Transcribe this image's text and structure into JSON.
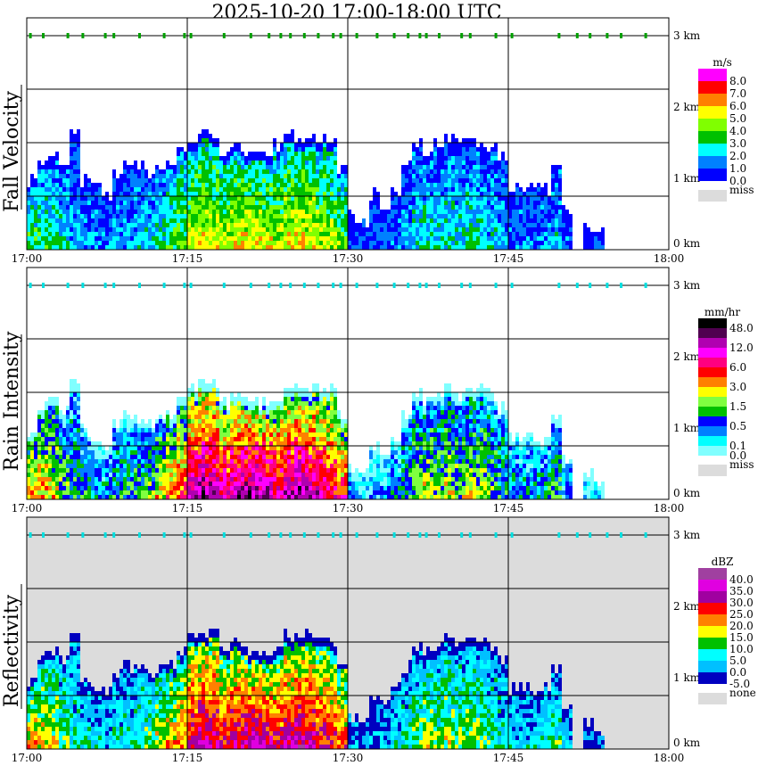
{
  "title": "2025-10-20   17:00-18:00 UTC",
  "chart_data": {
    "type": "heatmap",
    "title": "2025-10-20   17:00-18:00 UTC",
    "x_ticks": [
      "17:00",
      "17:15",
      "17:30",
      "17:45",
      "18:00"
    ],
    "x_range_min": [
      0,
      60
    ],
    "y_ticks": [
      "3 km",
      "2 km",
      "1 km",
      "0 km"
    ],
    "y_range_km": [
      0,
      3.25
    ],
    "echo_top_km_per_minute": [
      1.0,
      1.3,
      1.4,
      1.3,
      1.7,
      1.0,
      0.9,
      0.8,
      1.1,
      1.2,
      1.2,
      1.1,
      1.2,
      1.2,
      1.4,
      1.6,
      1.65,
      1.65,
      1.4,
      1.5,
      1.4,
      1.35,
      1.4,
      1.5,
      1.6,
      1.55,
      1.6,
      1.6,
      1.55,
      1.2,
      0.5,
      0.4,
      0.8,
      0.7,
      0.9,
      1.2,
      1.5,
      1.4,
      1.5,
      1.6,
      1.5,
      1.6,
      1.55,
      1.5,
      1.3,
      0.9,
      0.9,
      0.9,
      0.9,
      1.2,
      0.6,
      0,
      0.4,
      0.3,
      0,
      0,
      0,
      0,
      0,
      0
    ],
    "relative_intensity_per_minute": [
      0.6,
      0.55,
      0.5,
      0.4,
      0.3,
      0.3,
      0.25,
      0.25,
      0.3,
      0.3,
      0.35,
      0.4,
      0.5,
      0.6,
      0.65,
      0.85,
      0.9,
      0.85,
      0.8,
      0.85,
      0.9,
      0.9,
      0.85,
      0.8,
      0.85,
      0.9,
      0.85,
      0.8,
      0.75,
      0.7,
      0.2,
      0.15,
      0.15,
      0.2,
      0.25,
      0.3,
      0.4,
      0.45,
      0.4,
      0.45,
      0.4,
      0.45,
      0.4,
      0.35,
      0.3,
      0.25,
      0.25,
      0.25,
      0.3,
      0.35,
      0.2,
      0,
      0.1,
      0.1,
      0,
      0,
      0,
      0,
      0,
      0
    ],
    "top_marks_min": [
      0.3,
      1.5,
      3.8,
      5.2,
      7.3,
      8.1,
      10.5,
      12.8,
      14.7,
      15.3,
      18.4,
      20.9,
      22.6,
      23.7,
      24.6,
      25.9,
      27.2,
      28.6,
      29.3,
      30.8,
      32.7,
      34.3,
      35.6,
      36.7,
      37.3,
      38.5,
      40.6,
      41.4,
      43.8,
      45.3,
      49.7,
      51.4,
      52.6,
      54.2,
      55.5,
      57.8
    ],
    "panels": [
      {
        "name": "Fall Velocity",
        "unit": "m/s",
        "missing_label": "miss",
        "background": "#ffffff",
        "colorbar": [
          {
            "color": "#ff00ff",
            "label": "8.0"
          },
          {
            "color": "#ff0000",
            "label": "7.0"
          },
          {
            "color": "#ff8000",
            "label": "6.0"
          },
          {
            "color": "#ffff00",
            "label": "5.0"
          },
          {
            "color": "#80ff00",
            "label": "4.0"
          },
          {
            "color": "#00c000",
            "label": "3.0"
          },
          {
            "color": "#00ffff",
            "label": "2.0"
          },
          {
            "color": "#0080ff",
            "label": "1.0"
          },
          {
            "color": "#0000ff",
            "label": "0.0"
          }
        ],
        "missing_color": "#dcdcdc",
        "scale": 0.55,
        "mark_color": "#00a000"
      },
      {
        "name": "Rain Intensity",
        "unit": "mm/hr",
        "missing_label": "miss",
        "background": "#ffffff",
        "colorbar": [
          {
            "color": "#000000",
            "label": "48.0"
          },
          {
            "color": "#500050",
            "label": ""
          },
          {
            "color": "#b000b0",
            "label": "12.0"
          },
          {
            "color": "#ff00ff",
            "label": ""
          },
          {
            "color": "#ff0080",
            "label": "6.0"
          },
          {
            "color": "#ff0000",
            "label": ""
          },
          {
            "color": "#ff8000",
            "label": "3.0"
          },
          {
            "color": "#ffff00",
            "label": ""
          },
          {
            "color": "#80ff40",
            "label": "1.5"
          },
          {
            "color": "#00c000",
            "label": ""
          },
          {
            "color": "#0000ff",
            "label": "0.5"
          },
          {
            "color": "#0080ff",
            "label": ""
          },
          {
            "color": "#00ffff",
            "label": "0.1"
          },
          {
            "color": "#80ffff",
            "label": "0.0"
          }
        ],
        "missing_color": "#dcdcdc",
        "scale": 0.75,
        "mark_color": "#00e0e0"
      },
      {
        "name": "Reflectivity",
        "unit": "dBZ",
        "missing_label": "none",
        "background": "#dcdcdc",
        "colorbar": [
          {
            "color": "#a040a0",
            "label": "40.0"
          },
          {
            "color": "#e000e0",
            "label": "35.0"
          },
          {
            "color": "#a000a0",
            "label": "30.0"
          },
          {
            "color": "#ff0000",
            "label": "25.0"
          },
          {
            "color": "#ff8000",
            "label": "20.0"
          },
          {
            "color": "#ffff00",
            "label": "15.0"
          },
          {
            "color": "#00c000",
            "label": "10.0"
          },
          {
            "color": "#00ffff",
            "label": "5.0"
          },
          {
            "color": "#00c0ff",
            "label": "0.0"
          },
          {
            "color": "#0000c0",
            "label": "-5.0"
          }
        ],
        "missing_color": "#dcdcdc",
        "scale": 0.7,
        "mark_color": "#00e0e0"
      }
    ]
  }
}
